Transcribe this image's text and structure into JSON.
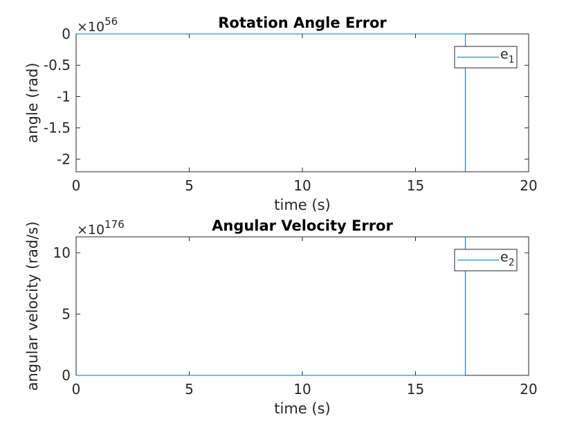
{
  "chart_data": [
    {
      "type": "line",
      "title": "Rotation Angle Error",
      "xlabel": "time (s)",
      "ylabel": "angle (rad)",
      "xlim": [
        0,
        20
      ],
      "ylim": [
        -2.2,
        0
      ],
      "xticks": [
        "0",
        "5",
        "10",
        "15",
        "20"
      ],
      "xtick_values": [
        0,
        5,
        10,
        15,
        20
      ],
      "yticks": [
        "0",
        "-0.5",
        "-1",
        "-1.5",
        "-2"
      ],
      "ytick_values": [
        0,
        -0.5,
        -1,
        -1.5,
        -2
      ],
      "exponent_base": "×10",
      "exponent": "56",
      "grid": false,
      "legend_position": "top-right",
      "series": [
        {
          "name": "e",
          "name_subscript": "1",
          "color": "#0072BD",
          "x": [
            0,
            17.2,
            17.2
          ],
          "y": [
            0,
            0,
            -2.2
          ]
        }
      ]
    },
    {
      "type": "line",
      "title": "Angular Velocity Error",
      "xlabel": "time (s)",
      "ylabel": "angular velocity (rad/s)",
      "xlim": [
        0,
        20
      ],
      "ylim": [
        0,
        11.3
      ],
      "xticks": [
        "0",
        "5",
        "10",
        "15",
        "20"
      ],
      "xtick_values": [
        0,
        5,
        10,
        15,
        20
      ],
      "yticks": [
        "0",
        "5",
        "10"
      ],
      "ytick_values": [
        0,
        5,
        10
      ],
      "exponent_base": "×10",
      "exponent": "176",
      "grid": false,
      "legend_position": "top-right",
      "series": [
        {
          "name": "e",
          "name_subscript": "2",
          "color": "#0072BD",
          "x": [
            0,
            17.2,
            17.2
          ],
          "y": [
            0,
            0,
            11.3
          ]
        }
      ]
    }
  ]
}
